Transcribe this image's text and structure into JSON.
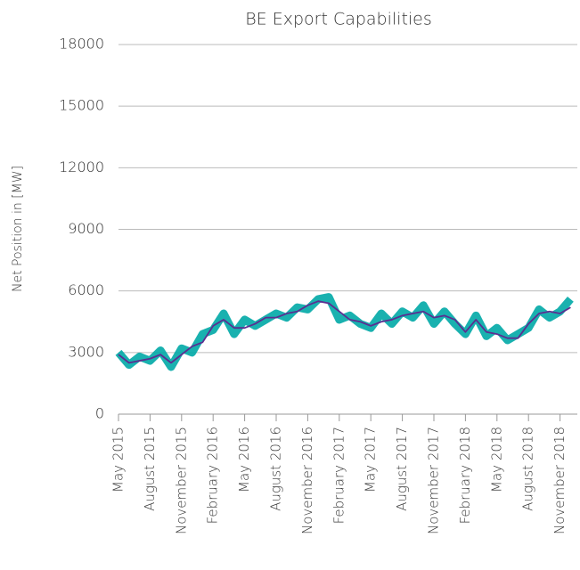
{
  "chart_data": {
    "type": "line",
    "title": "BE Export Capabilities",
    "y_label": "Net Position in [MW]",
    "x": [
      "May 2015",
      null,
      null,
      "August 2015",
      null,
      null,
      "November 2015",
      null,
      null,
      "February 2016",
      null,
      null,
      "May 2016",
      null,
      null,
      "August 2016",
      null,
      null,
      "November 2016",
      null,
      null,
      "February 2017",
      null,
      null,
      "May 2017",
      null,
      null,
      "August 2017",
      null,
      null,
      "November 2017",
      null,
      null,
      "February 2018",
      null,
      null,
      "May 2018",
      null,
      null,
      "August 2018",
      null,
      null,
      "November 2018",
      null
    ],
    "series": [
      {
        "color": "#00a9a6",
        "values": [
          3000,
          2400,
          2800,
          2600,
          3100,
          2300,
          3200,
          3000,
          3900,
          4100,
          4900,
          3900,
          4600,
          4300,
          4600,
          4900,
          4700,
          5200,
          5100,
          5600,
          5700,
          4600,
          4800,
          4400,
          4200,
          4900,
          4400,
          5000,
          4700,
          5300,
          4400,
          5000,
          4400,
          3900,
          4800,
          3800,
          4200,
          3600,
          3900,
          4200,
          5100,
          4700,
          5000,
          5600
        ]
      },
      {
        "color": "#5b2e91",
        "values": [
          2900,
          2500,
          2600,
          2700,
          2900,
          2500,
          2900,
          3300,
          3500,
          4300,
          4600,
          4200,
          4200,
          4400,
          4700,
          4700,
          4900,
          5000,
          5300,
          5500,
          5400,
          5000,
          4600,
          4500,
          4300,
          4500,
          4600,
          4800,
          4900,
          5000,
          4700,
          4800,
          4600,
          4000,
          4600,
          4000,
          3900,
          3700,
          3700,
          4400,
          4900,
          5000,
          4900,
          5200
        ]
      }
    ],
    "ylim": [
      0,
      18000
    ],
    "yticks": [
      0,
      3000,
      6000,
      9000,
      12000,
      15000,
      18000
    ],
    "grid": true
  }
}
